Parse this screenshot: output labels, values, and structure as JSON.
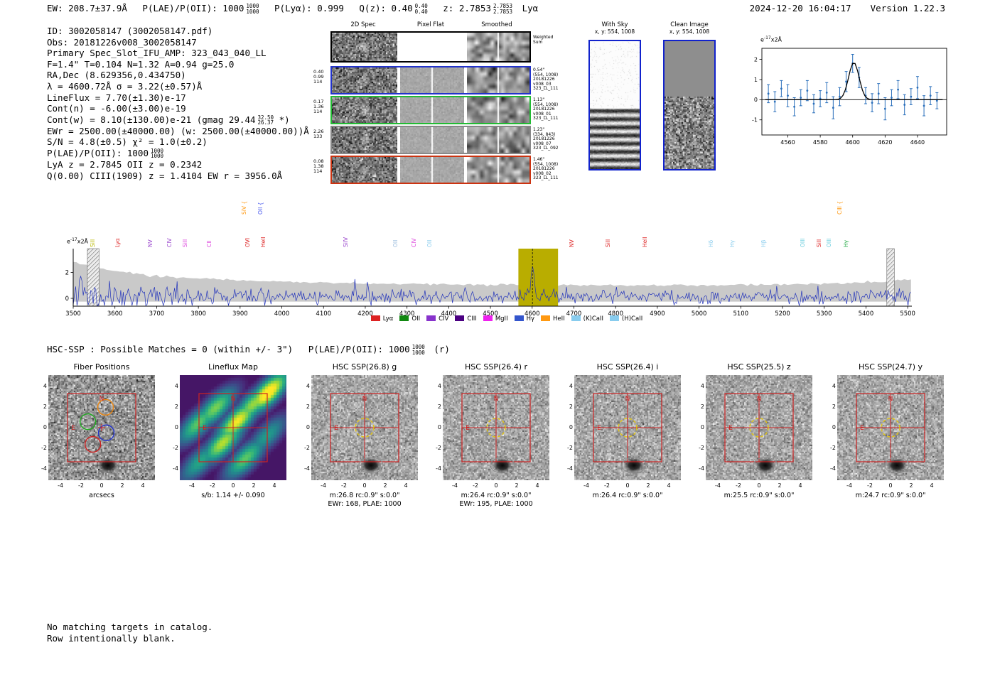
{
  "topline": {
    "ew": "EW: 208.7±37.9Å",
    "plae": "P(LAE)/P(OII): 1000",
    "plae_hi": "1000",
    "plae_lo": "1000",
    "plya": "P(Lyα): 0.999",
    "qz": "Q(z): 0.40",
    "qz_hi": "0.40",
    "qz_lo": "0.40",
    "z": "z: 2.7853",
    "z_hi": "2.7853",
    "z_lo": "2.7853",
    "classification": "Lyα",
    "datetime": "2024-12-20 16:04:17",
    "version": "Version 1.22.3"
  },
  "info": {
    "line_id": "ID: 3002058147 (3002058147.pdf)",
    "line_obs": "Obs: 20181226v008_3002058147",
    "line_primary": "Primary Spec_Slot_IFU_AMP: 323_043_040_LL",
    "line_seeing": "F=1.4\"  T=0.104  N=1.32  A=0.94  g=25.0",
    "line_radec": "RA,Dec (8.629356,0.434750)",
    "line_lambda": "λ = 4600.72Å  σ = 3.22(±0.57)Å",
    "line_lineflux": "LineFlux = 7.70(±1.30)e-17",
    "line_contn": "Cont(n) = -6.00(±3.00)e-19",
    "line_contw_pre": "Cont(w) = 8.10(±130.00)e-21 (gmag 29.44",
    "line_contw_hi": "32.50",
    "line_contw_lo": "26.37",
    "line_contw_post": "*)",
    "line_ewr": "EWr = 2500.00(±40000.00) (w: 2500.00(±40000.00))Å",
    "line_sn": "S/N = 4.8(±0.5)  χ² = 1.0(±0.2)",
    "line_plae_pre": "P(LAE)/P(OII): 1000",
    "line_plae_hi": "1000",
    "line_plae_lo": "1000",
    "line_z": "LyA z = 2.7845  OII z = 0.2342",
    "line_q": "Q(0.00) CIII(1909) z = 1.4104  EW r = 3956.0Å"
  },
  "spec2d": {
    "col_titles": [
      "2D Spec",
      "Pixel Flat",
      "Smoothed"
    ],
    "weighted_label1": "Weighted",
    "weighted_label2": "Sum",
    "rows": [
      {
        "color": "#2233cc",
        "left": [
          "0.40",
          "0.99",
          "114"
        ],
        "right": [
          "0.54\"",
          "(554, 1008)",
          "20181226",
          "v008_03",
          "323_LL_111"
        ]
      },
      {
        "color": "#22bb33",
        "left": [
          "0.17",
          "1.36",
          "114"
        ],
        "right": [
          "1.13\"",
          "(554, 1008)",
          "20181226",
          "v008_01",
          "323_LL_111"
        ]
      },
      {
        "color": "#888888",
        "left": [
          "2.26",
          "133"
        ],
        "right": [
          "1.23\"",
          "(334, 843)",
          "20181226",
          "v008_07",
          "323_LL_092"
        ]
      },
      {
        "color": "#cc3311",
        "left": [
          "0.08",
          "1.38",
          "114"
        ],
        "right": [
          "1.46\"",
          "(554, 1008)",
          "20181226",
          "v008_02",
          "323_LL_111"
        ]
      }
    ]
  },
  "withsky": {
    "title": "With Sky",
    "subtitle": "x, y: 554, 1008"
  },
  "clean": {
    "title": "Clean Image",
    "subtitle": "x, y: 554, 1008"
  },
  "spectrum": {
    "ylabel_base": "e",
    "ylabel_exp": "-17",
    "ylabel_suffix": "x2Å"
  },
  "hsc": {
    "matches": "HSC-SSP : Possible Matches = 0 (within +/- 3\")",
    "plae": "P(LAE)/P(OII): 1000",
    "plae_hi": "1000",
    "plae_lo": "1000",
    "suffix": "(r)"
  },
  "cutouts": {
    "ticks": [
      -4,
      -2,
      0,
      2,
      4
    ],
    "compass": {
      "n": "N",
      "e": "E"
    },
    "panels": [
      {
        "title": "Fiber Positions",
        "caption1": "arcsecs"
      },
      {
        "title": "Lineflux Map",
        "caption1": "s/b: 1.14 +/- 0.090"
      },
      {
        "title": "HSC SSP(26.8) g",
        "caption1": "m:26.8 rc:0.9\" s:0.0\"",
        "caption2": "EWr: 168, PLAE: 1000"
      },
      {
        "title": "HSC SSP(26.4) r",
        "caption1": "m:26.4 rc:0.9\" s:0.0\"",
        "caption2": "EWr: 195, PLAE: 1000"
      },
      {
        "title": "HSC SSP(26.4) i",
        "caption1": "m:26.4 rc:0.9\" s:0.0\""
      },
      {
        "title": "HSC SSP(25.5) z",
        "caption1": "m:25.5 rc:0.9\" s:0.0\""
      },
      {
        "title": "HSC SSP(24.7) y",
        "caption1": "m:24.7 rc:0.9\" s:0.0\""
      }
    ]
  },
  "footer": {
    "line1": "No matching targets in catalog.",
    "line2": "Row intentionally blank."
  },
  "chart_data": [
    {
      "type": "scatter",
      "title": "emission line fit zoom",
      "ylabel": "e-17x2Å",
      "xlim": [
        4544,
        4658
      ],
      "ylim": [
        -1.75,
        2.55
      ],
      "xticks": [
        4560,
        4580,
        4600,
        4620,
        4640
      ],
      "yticks": [
        -1,
        0,
        1,
        2
      ],
      "x": [
        4548,
        4552,
        4556,
        4560,
        4564,
        4568,
        4572,
        4576,
        4580,
        4584,
        4588,
        4592,
        4596,
        4600,
        4604,
        4608,
        4612,
        4616,
        4620,
        4624,
        4628,
        4632,
        4636,
        4640,
        4644,
        4648,
        4652
      ],
      "y": [
        0.3,
        -0.1,
        0.55,
        0.2,
        -0.35,
        0.1,
        0.45,
        -0.2,
        0.05,
        0.35,
        -0.4,
        0.15,
        0.9,
        1.8,
        1.1,
        0.2,
        -0.15,
        0.3,
        -0.45,
        0.1,
        0.5,
        -0.25,
        0.15,
        0.6,
        -0.3,
        0.2,
        -0.05
      ],
      "yerr": [
        0.45,
        0.5,
        0.4,
        0.55,
        0.45,
        0.4,
        0.5,
        0.45,
        0.4,
        0.5,
        0.55,
        0.45,
        0.5,
        0.45,
        0.5,
        0.4,
        0.45,
        0.5,
        0.55,
        0.4,
        0.45,
        0.5,
        0.4,
        0.55,
        0.5,
        0.45,
        0.4
      ],
      "fit": {
        "model": "gaussian",
        "center": 4600.72,
        "sigma": 3.22,
        "amplitude": 1.85,
        "baseline": 0.0
      },
      "marker_color": "#2a6fbb",
      "fit_color": "#000000"
    },
    {
      "type": "line",
      "title": "full 1D spectrum",
      "ylabel": "e-17x2Å",
      "xlim": [
        3500,
        5510
      ],
      "ylim": [
        -0.6,
        3.9
      ],
      "xticks": [
        3500,
        3600,
        3700,
        3800,
        3900,
        4000,
        4100,
        4200,
        4300,
        4400,
        4500,
        4600,
        4700,
        4800,
        4900,
        5000,
        5100,
        5200,
        5300,
        5400,
        5500
      ],
      "yticks": [
        0,
        2
      ],
      "seed": 20181226,
      "peak": {
        "x": 4600.72,
        "y": 2.6
      },
      "band": [
        4567,
        4662
      ],
      "band_color": "#b9ad00",
      "hatched": [
        [
          3534,
          3562
        ],
        [
          5450,
          5468
        ]
      ],
      "envelope": [
        [
          3500,
          2.85
        ],
        [
          3540,
          2.5
        ],
        [
          3560,
          2.32
        ],
        [
          3600,
          2.08
        ],
        [
          3650,
          1.88
        ],
        [
          3700,
          1.72
        ],
        [
          3750,
          1.62
        ],
        [
          3800,
          1.52
        ],
        [
          3900,
          1.4
        ],
        [
          4000,
          1.3
        ],
        [
          4100,
          1.22
        ],
        [
          4200,
          1.16
        ],
        [
          4300,
          1.11
        ],
        [
          4400,
          1.08
        ],
        [
          4500,
          1.05
        ],
        [
          4600,
          1.03
        ],
        [
          4700,
          1.01
        ],
        [
          4800,
          1.0
        ],
        [
          4900,
          0.99
        ],
        [
          5000,
          1.0
        ],
        [
          5100,
          1.03
        ],
        [
          5200,
          1.07
        ],
        [
          5300,
          1.13
        ],
        [
          5400,
          1.23
        ],
        [
          5460,
          1.33
        ],
        [
          5508,
          1.46
        ]
      ],
      "line_labels": [
        {
          "label": "SiII",
          "wl": 3547,
          "color": "#b8b800"
        },
        {
          "label": "Lyα",
          "wl": 3608,
          "color": "#dd2222"
        },
        {
          "label": "NV",
          "wl": 3686,
          "color": "#9944cc"
        },
        {
          "label": "CIV",
          "wl": 3731,
          "color": "#9944cc"
        },
        {
          "label": "SiII",
          "wl": 3769,
          "color": "#dd44dd"
        },
        {
          "label": "CII",
          "wl": 3827,
          "color": "#dd44dd"
        },
        {
          "label": "SiV {",
          "wl": 3910,
          "color": "#ff9911",
          "raised": true
        },
        {
          "label": "OII {",
          "wl": 3950,
          "color": "#4455ee",
          "raised": true
        },
        {
          "label": "OVI",
          "wl": 3919,
          "color": "#dd2222"
        },
        {
          "label": "HeII",
          "wl": 3957,
          "color": "#dd2222"
        },
        {
          "label": "SiIV",
          "wl": 4154,
          "color": "#9944cc"
        },
        {
          "label": "OII",
          "wl": 4274,
          "color": "#99bbdd"
        },
        {
          "label": "CIV",
          "wl": 4317,
          "color": "#dd44dd"
        },
        {
          "label": "OII",
          "wl": 4355,
          "color": "#88ccee"
        },
        {
          "label": "NV",
          "wl": 4695,
          "color": "#dd2222"
        },
        {
          "label": "SiII",
          "wl": 4783,
          "color": "#dd2222"
        },
        {
          "label": "HeII",
          "wl": 4871,
          "color": "#dd2222"
        },
        {
          "label": "Hδ",
          "wl": 5029,
          "color": "#88ccee"
        },
        {
          "label": "Hγ",
          "wl": 5080,
          "color": "#88ccee"
        },
        {
          "label": "Hβ",
          "wl": 5156,
          "color": "#88ccee"
        },
        {
          "label": "OIII",
          "wl": 5249,
          "color": "#66ccdd"
        },
        {
          "label": "SiII",
          "wl": 5288,
          "color": "#dd2222"
        },
        {
          "label": "OIII",
          "wl": 5312,
          "color": "#66ccdd"
        },
        {
          "label": "CIII {",
          "wl": 5338,
          "color": "#ff9911",
          "raised": true
        },
        {
          "label": "Hγ",
          "wl": 5354,
          "color": "#22aa44"
        }
      ],
      "legend": [
        {
          "label": "Lyα",
          "color": "#dd2222"
        },
        {
          "label": "OII",
          "color": "#118811"
        },
        {
          "label": "CIV",
          "color": "#8833cc"
        },
        {
          "label": "CIII",
          "color": "#4b0082"
        },
        {
          "label": "MgII",
          "color": "#ee22ee"
        },
        {
          "label": "Hγ",
          "color": "#3355cc"
        },
        {
          "label": "HeII",
          "color": "#ff9911"
        },
        {
          "label": "(K)CaII",
          "color": "#88ccee"
        },
        {
          "label": "(H)CaII",
          "color": "#88ccee"
        }
      ]
    }
  ]
}
